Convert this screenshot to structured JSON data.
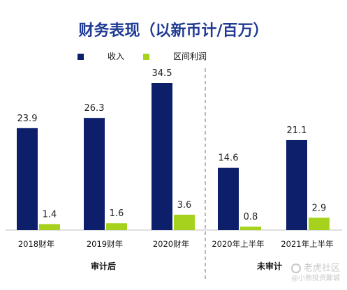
{
  "chart_data": {
    "type": "bar",
    "title": "财务表现（以新币计/百万）",
    "categories": [
      "2018财年",
      "2019财年",
      "2020财年",
      "2020年上半年",
      "2021年上半年"
    ],
    "series": [
      {
        "name": "收入",
        "values": [
          23.9,
          26.3,
          34.5,
          14.6,
          21.1
        ],
        "value_labels": [
          "23.9",
          "26.3",
          "34.5",
          "14.6",
          "21.1"
        ],
        "color": "#0d1f6b"
      },
      {
        "name": "区间利润",
        "values": [
          1.4,
          1.6,
          3.6,
          0.8,
          2.9
        ],
        "value_labels": [
          "1.4",
          "1.6",
          "3.6",
          "0.8",
          "2.9"
        ],
        "color": "#a6d21e"
      }
    ],
    "groups": [
      {
        "label": "审计后",
        "categories": [
          "2018财年",
          "2019财年",
          "2020财年"
        ]
      },
      {
        "label": "未审计",
        "categories": [
          "2020年上半年",
          "2021年上半年"
        ]
      }
    ],
    "xlabel": "",
    "ylabel": "",
    "ylim": [
      0,
      36
    ],
    "legend_position": "top",
    "grid": false
  },
  "watermark": {
    "brand": "老虎社区",
    "sub": "@小熊投资鄙城"
  }
}
